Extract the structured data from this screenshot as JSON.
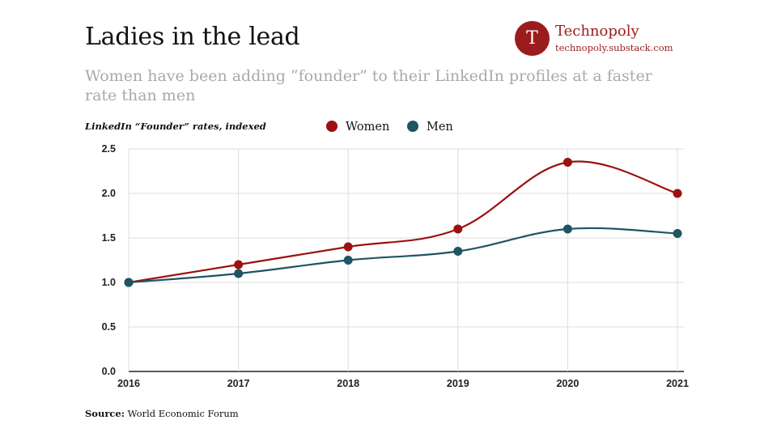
{
  "header": {
    "title": "Ladies in the lead",
    "subtitle": "Women have been adding “founder” to their LinkedIn profiles at a faster rate than men"
  },
  "brand": {
    "logo_letter": "T",
    "name": "Technopoly",
    "url": "technopoly.substack.com",
    "color": "#9b1c1c"
  },
  "footer": {
    "source_label": "Source:",
    "source_text": "World Economic Forum"
  },
  "chart_data": {
    "type": "line",
    "ylabel": "LinkedIn “Founder” rates, indexed",
    "x": [
      "2016",
      "2017",
      "2018",
      "2019",
      "2020",
      "2021"
    ],
    "ylim": [
      0,
      2.5
    ],
    "yticks": [
      "0.0",
      "0.5",
      "1.0",
      "1.5",
      "2.0",
      "2.5"
    ],
    "grid": true,
    "legend_position": "top-center",
    "series": [
      {
        "name": "Women",
        "color": "#9b1111",
        "values": [
          1.0,
          1.2,
          1.4,
          1.6,
          2.35,
          2.0
        ]
      },
      {
        "name": "Men",
        "color": "#1f5462",
        "values": [
          1.0,
          1.1,
          1.25,
          1.35,
          1.6,
          1.55
        ]
      }
    ]
  }
}
